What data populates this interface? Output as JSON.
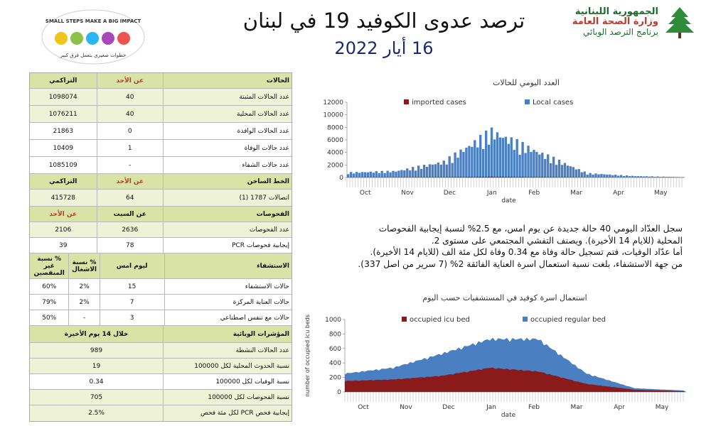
{
  "header": {
    "title": "ترصد عدوى الكوفيد 19 في لبنان",
    "date": "16 أيار 2022",
    "ministry_line1": "الجمهورية اللبنانية",
    "ministry_line2": "وزارة الصحة العامة",
    "ministry_line3": "برنامج الترصد الوبائي",
    "badge_top": "SMALL STEPS MAKE A BIG IMPACT",
    "badge_bottom": "خطوات صغيري بتعمل فرق كبير"
  },
  "table": {
    "cases": {
      "header": [
        "التراكمي",
        "عن الأحد",
        "الحالات"
      ],
      "rows": [
        {
          "label": "عدد الحالات المثبتة",
          "day": "40",
          "cum": "1098074"
        },
        {
          "label": "عدد الحالات المحلية",
          "day": "40",
          "cum": "1076211"
        },
        {
          "label": "عدد الحالات الوافدة",
          "day": "0",
          "cum": "21863"
        },
        {
          "label": "عدد حالات الوفاة",
          "day": "1",
          "cum": "10409"
        },
        {
          "label": "عدد حالات الشفاء",
          "day": "-",
          "cum": "1085109"
        }
      ]
    },
    "hotline": {
      "header": [
        "التراكمي",
        "عن الأحد",
        "الخط الساخن"
      ],
      "row": {
        "label": "اتصالات 1787 (1)",
        "day": "64",
        "cum": "415728"
      }
    },
    "tests": {
      "header": [
        "عن الأحد",
        "عن السبت",
        "الفحوصات"
      ],
      "rows": [
        {
          "label": "عدد الفحوصات",
          "sat": "2636",
          "sun": "2106"
        },
        {
          "label": "إيجابية فحوصات PCR",
          "sat": "78",
          "sun": "39"
        }
      ]
    },
    "hosp": {
      "header": [
        "% نسبة غير المنفصين",
        "% نسبة الاشغال",
        "ليوم امس",
        "الاستشفاء"
      ],
      "rows": [
        {
          "label": "حالات الاستشفاء",
          "today": "15",
          "occ": "2%",
          "free": "60%"
        },
        {
          "label": "حالات العناية المركزة",
          "today": "7",
          "occ": "2%",
          "free": "79%"
        },
        {
          "label": "حالات مع تنفس اصطناعي",
          "today": "3",
          "occ": "-",
          "free": "50%"
        }
      ]
    },
    "epi": {
      "header": [
        "خلال 14 يوم الأخيرة",
        "المؤشرات الوبائية"
      ],
      "rows": [
        {
          "label": "عدد الحالات النشطة",
          "value": "989"
        },
        {
          "label": "نسبة الحدوث المحلية لكل 100000",
          "value": "19"
        },
        {
          "label": "نسبة الوفيات لكل 100000",
          "value": "0.34"
        },
        {
          "label": "نسبة الفحوصات لكل 100000",
          "value": "705"
        },
        {
          "label": "إيجابية فحص PCR لكل مئة فحص",
          "value": "2.5%"
        }
      ]
    }
  },
  "paragraph": {
    "line1": "سجل العدّاد اليومي 40 حالة جديدة عن يوم امس، مع 2.5% لنسبة إيجابية الفحوصات",
    "line2": "المحلية (للايام 14 الأخيرة). ويصنف التفشي المجتمعي على مستوى 2.",
    "line3": "أما عدّاد الوفيات، فتم تسجيل حالة وفاة مع 0.34 وفاة لكل مئة الف (للايام 14 الأخيرة).",
    "line4": "من جهة الاستشفاء، بلغت نسبة استعمال اسرة العناية الفائقة 2% (7 سرير من اصل 337)."
  },
  "chart_data": [
    {
      "type": "bar",
      "title": "العدد اليومي للحالات",
      "xlabel": "date",
      "ylabel": "",
      "ylim": [
        0,
        12000
      ],
      "yticks": [
        0,
        2000,
        4000,
        6000,
        8000,
        10000,
        12000
      ],
      "month_labels": [
        "Oct",
        "Nov",
        "Dec",
        "Jan",
        "Feb",
        "Mar",
        "Apr",
        "May"
      ],
      "legend_position": "top",
      "colors": {
        "imported": "#8b1a1a",
        "local": "#4a7fc1"
      },
      "series": [
        {
          "name": "imported cases",
          "values_by_month": [
            25,
            30,
            60,
            120,
            70,
            20,
            10,
            5
          ]
        },
        {
          "name": "Local cases",
          "values_by_month": [
            700,
            900,
            2200,
            6500,
            3500,
            600,
            200,
            60
          ]
        }
      ]
    },
    {
      "type": "area",
      "title": "استعمال اسرة كوفيد في المستشفيات حسب اليوم",
      "xlabel": "date",
      "ylabel": "number of occupied icu beds",
      "ylim": [
        0,
        1000
      ],
      "yticks": [
        0,
        200,
        400,
        600,
        800,
        1000
      ],
      "month_labels": [
        "Oct",
        "Nov",
        "Dec",
        "Jan",
        "Feb",
        "Mar",
        "Apr",
        "May"
      ],
      "legend_position": "top",
      "colors": {
        "icu": "#8b1a1a",
        "regular": "#4a7fc1"
      },
      "series": [
        {
          "name": "occupied icu bed",
          "values_by_month": [
            150,
            170,
            220,
            330,
            280,
            110,
            30,
            10
          ]
        },
        {
          "name": "occupied regular bed",
          "values_by_month": [
            250,
            330,
            520,
            720,
            720,
            250,
            50,
            20
          ]
        }
      ]
    }
  ]
}
